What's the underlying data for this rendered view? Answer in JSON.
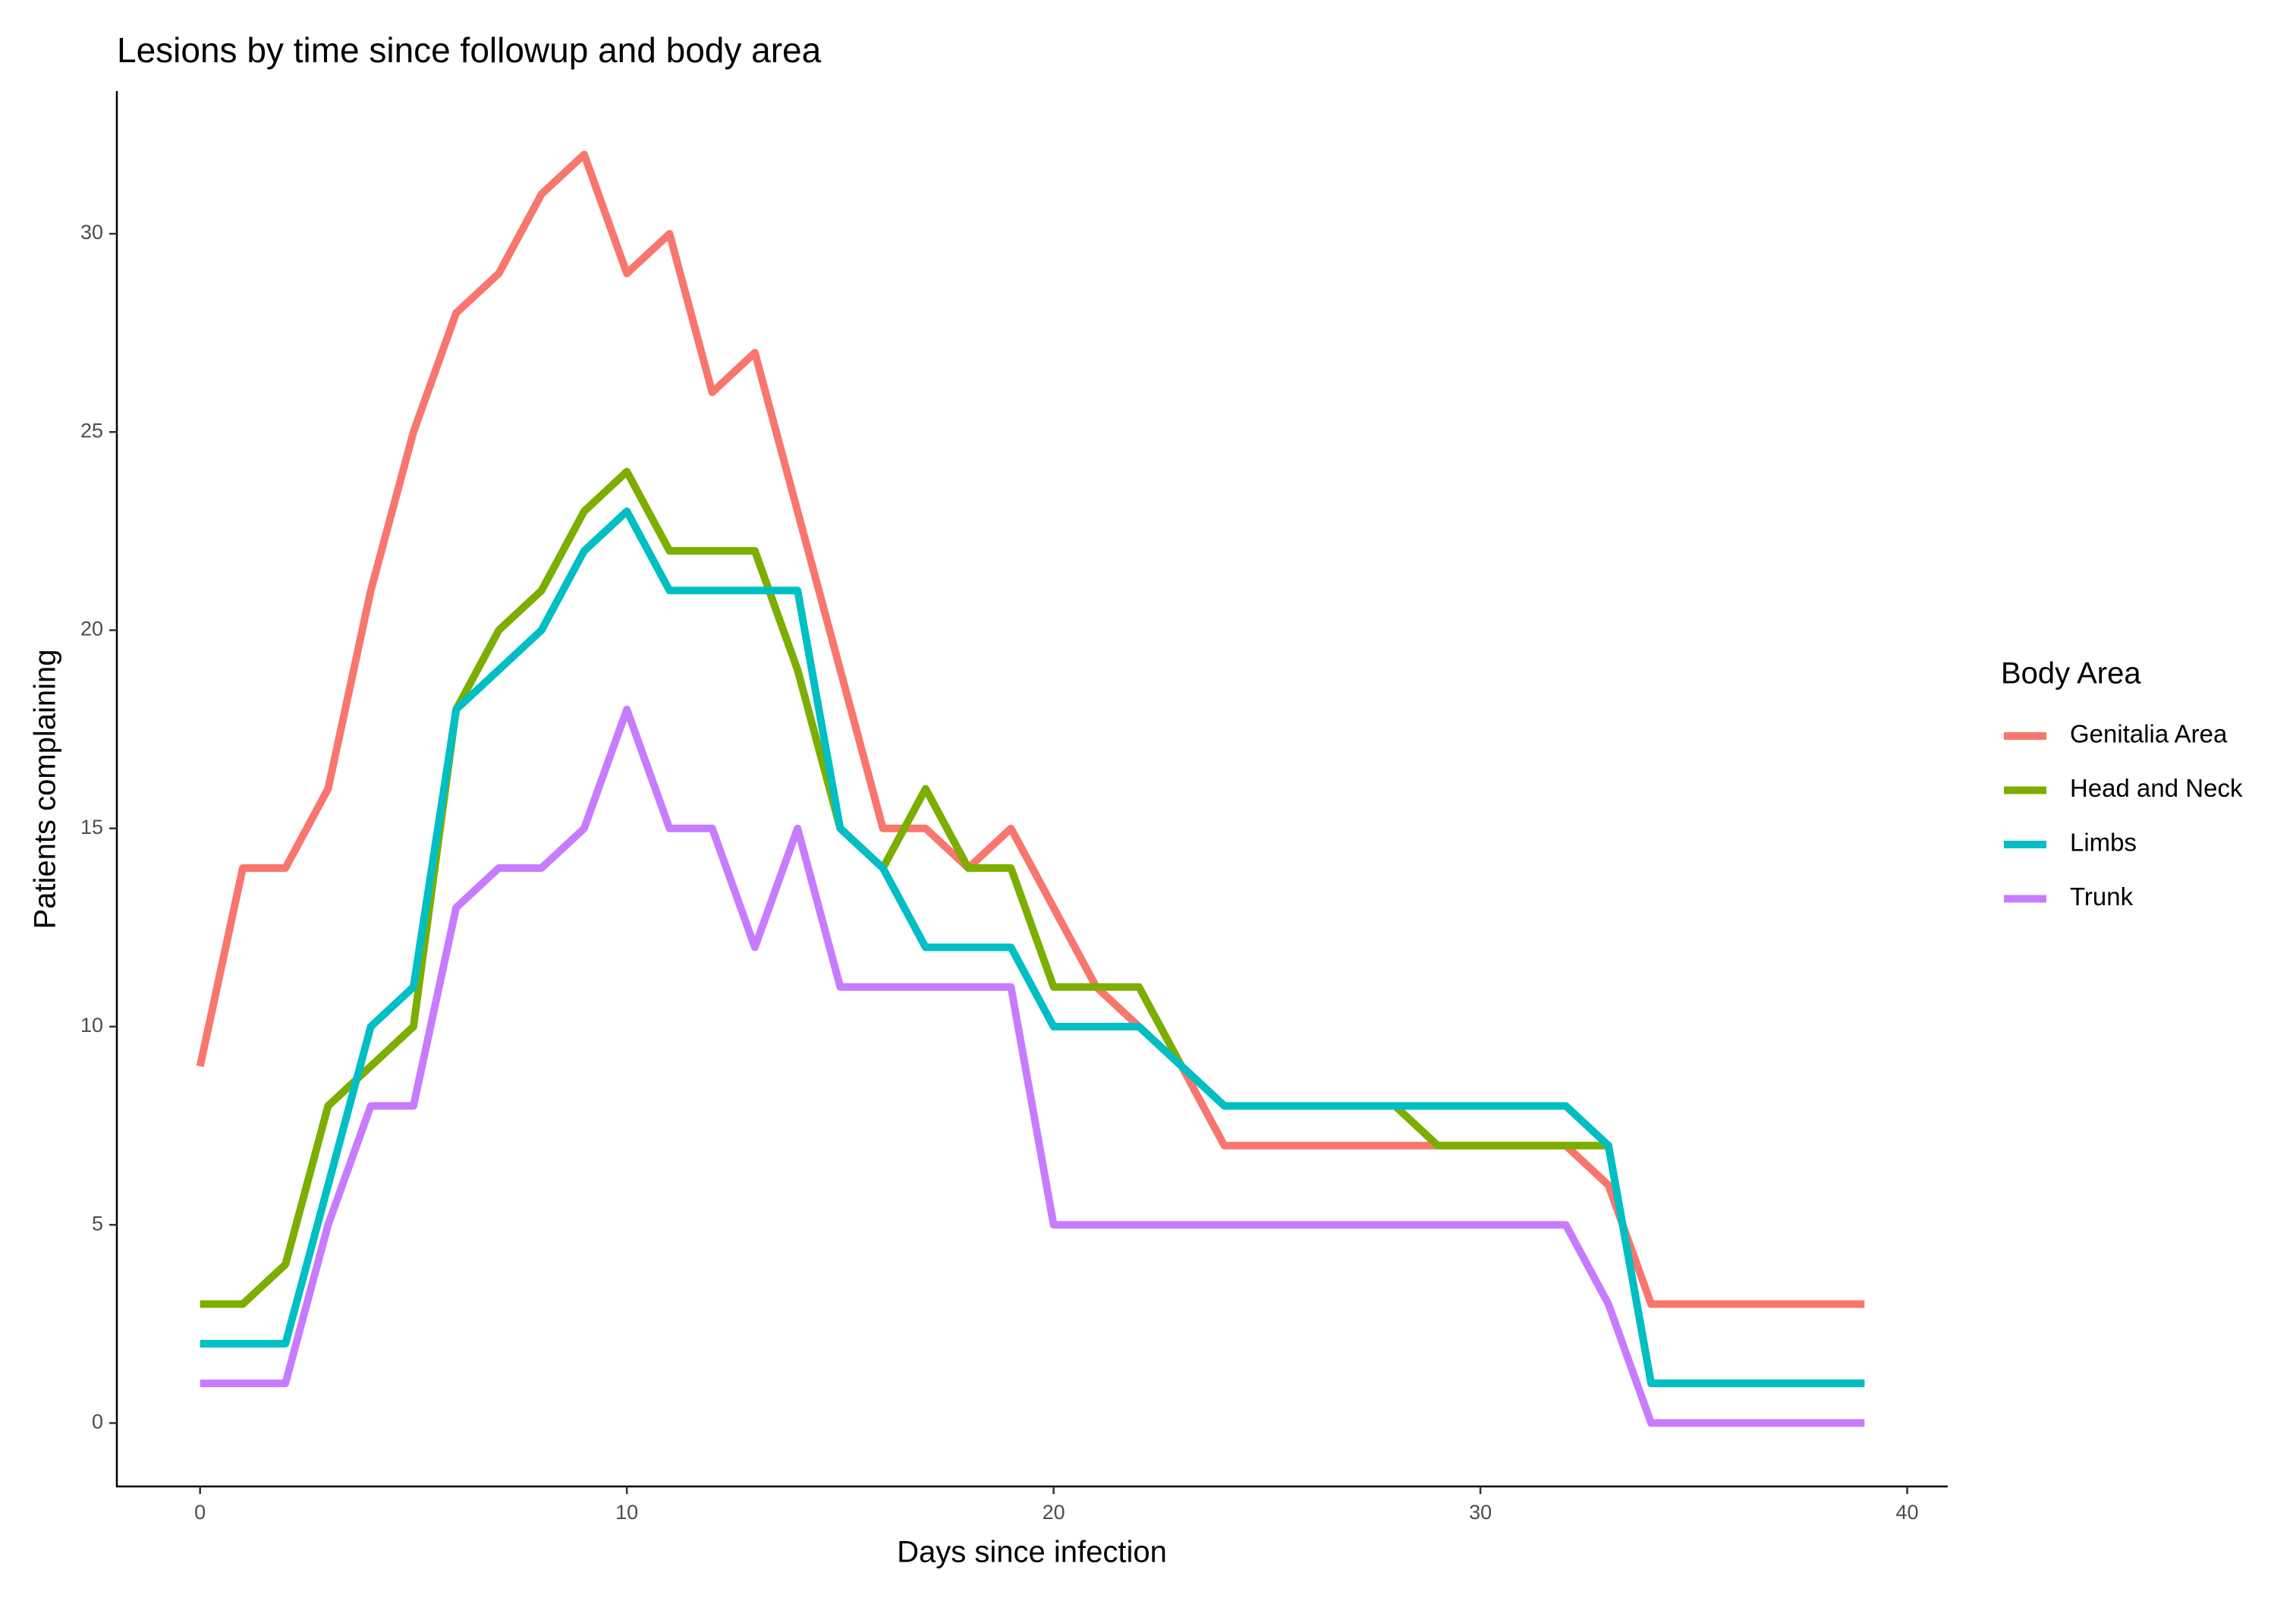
{
  "chart_data": {
    "type": "line",
    "title": "Lesions by time since followup and body area",
    "x_label": "Days since infection",
    "y_label": "Patients complaining",
    "legend_title": "Body Area",
    "legend_position": "right",
    "grid": false,
    "x": [
      0,
      1,
      2,
      3,
      4,
      5,
      6,
      7,
      8,
      9,
      10,
      11,
      12,
      13,
      14,
      15,
      16,
      17,
      18,
      19,
      20,
      21,
      22,
      23,
      24,
      25,
      26,
      27,
      28,
      29,
      30,
      31,
      32,
      33,
      34,
      35,
      36,
      37,
      38,
      39
    ],
    "series": [
      {
        "name": "Genitalia Area",
        "color": "#F8766D",
        "values": [
          9,
          14,
          14,
          16,
          21,
          25,
          28,
          29,
          31,
          32,
          29,
          30,
          26,
          27,
          23,
          19,
          15,
          15,
          14,
          15,
          13,
          11,
          10,
          9,
          7,
          7,
          7,
          7,
          7,
          7,
          7,
          7,
          7,
          6,
          3,
          3,
          3,
          3,
          3,
          3
        ]
      },
      {
        "name": "Head and Neck",
        "color": "#7CAE00",
        "values": [
          3,
          3,
          4,
          8,
          9,
          10,
          18,
          20,
          21,
          23,
          24,
          22,
          22,
          22,
          19,
          15,
          14,
          16,
          14,
          14,
          11,
          11,
          11,
          9,
          8,
          8,
          8,
          8,
          8,
          7,
          7,
          7,
          7,
          7,
          1,
          1,
          1,
          1,
          1,
          1
        ]
      },
      {
        "name": "Limbs",
        "color": "#00BFC4",
        "values": [
          2,
          2,
          2,
          6,
          10,
          11,
          18,
          19,
          20,
          22,
          23,
          21,
          21,
          21,
          21,
          15,
          14,
          12,
          12,
          12,
          10,
          10,
          10,
          9,
          8,
          8,
          8,
          8,
          8,
          8,
          8,
          8,
          8,
          7,
          1,
          1,
          1,
          1,
          1,
          1
        ]
      },
      {
        "name": "Trunk",
        "color": "#C77CFF",
        "values": [
          1,
          1,
          1,
          5,
          8,
          8,
          13,
          14,
          14,
          15,
          18,
          15,
          15,
          12,
          15,
          11,
          11,
          11,
          11,
          11,
          5,
          5,
          5,
          5,
          5,
          5,
          5,
          5,
          5,
          5,
          5,
          5,
          5,
          3,
          0,
          0,
          0,
          0,
          0,
          0
        ]
      }
    ],
    "xlim": [
      -1.95,
      40.95
    ],
    "xticks": [
      0,
      10,
      20,
      30,
      40
    ],
    "ylim": [
      -1.6,
      33.6
    ],
    "yticks": [
      0,
      5,
      10,
      15,
      20,
      25,
      30
    ]
  }
}
